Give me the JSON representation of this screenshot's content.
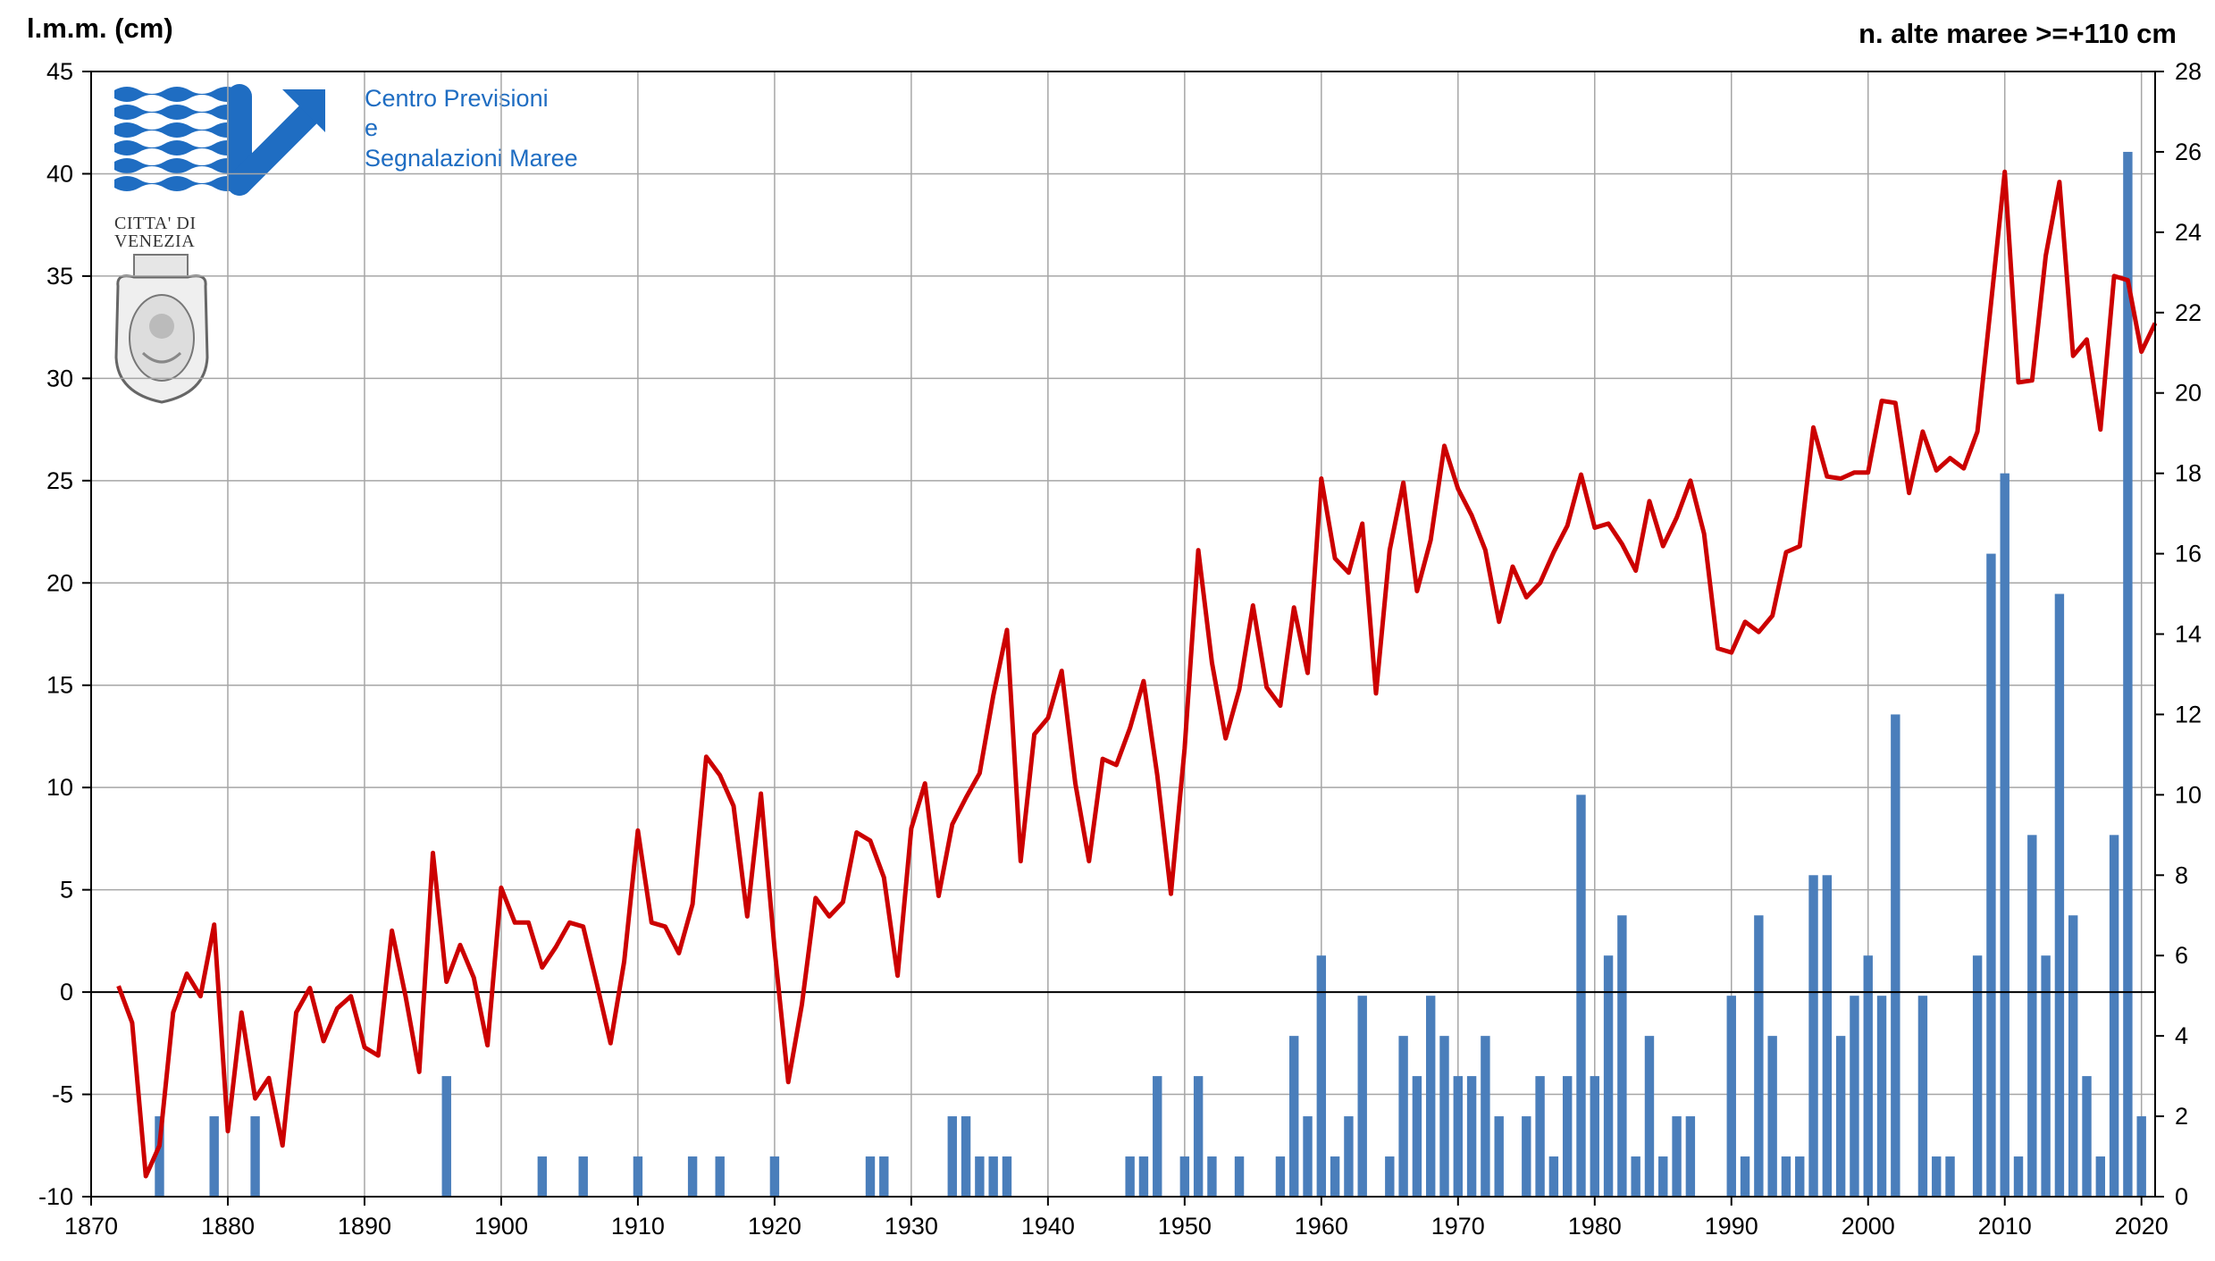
{
  "logo": {
    "org_line1": "Centro Previsioni",
    "org_line2": "e",
    "org_line3": "Segnalazioni Maree",
    "city_line1": "CITTA' DI",
    "city_line2": "VENEZIA",
    "brand_color": "#1f6dc2",
    "icon": "wave-lines-icon, arrow-up-right-icon, coat-of-arms-icon"
  },
  "chart_data": {
    "type": "bar+line",
    "ylabel_left": "l.m.m. (cm)",
    "ylabel_right": "n. alte maree >=+110 cm",
    "xlim": [
      1870,
      2021
    ],
    "ylim_left": [
      -10,
      45
    ],
    "ylim_right": [
      0,
      28
    ],
    "x_ticks": [
      1870,
      1880,
      1890,
      1900,
      1910,
      1920,
      1930,
      1940,
      1950,
      1960,
      1970,
      1980,
      1990,
      2000,
      2010,
      2020
    ],
    "y_ticks_left": [
      -10,
      -5,
      0,
      5,
      10,
      15,
      20,
      25,
      30,
      35,
      40,
      45
    ],
    "y_ticks_right": [
      0,
      2,
      4,
      6,
      8,
      10,
      12,
      14,
      16,
      18,
      20,
      22,
      24,
      26,
      28
    ],
    "grid": true,
    "line_color": "#cc0000",
    "bar_color": "#4a7ebb",
    "line_series": {
      "x": [
        1872,
        1873,
        1874,
        1875,
        1876,
        1877,
        1878,
        1879,
        1880,
        1881,
        1882,
        1883,
        1884,
        1885,
        1886,
        1887,
        1888,
        1889,
        1890,
        1891,
        1892,
        1893,
        1894,
        1895,
        1896,
        1897,
        1898,
        1899,
        1900,
        1901,
        1902,
        1903,
        1904,
        1905,
        1906,
        1907,
        1908,
        1909,
        1910,
        1911,
        1912,
        1913,
        1914,
        1915,
        1916,
        1917,
        1918,
        1919,
        1920,
        1921,
        1922,
        1923,
        1924,
        1925,
        1926,
        1927,
        1928,
        1929,
        1930,
        1931,
        1932,
        1933,
        1934,
        1935,
        1936,
        1937,
        1938,
        1939,
        1940,
        1941,
        1942,
        1943,
        1944,
        1945,
        1946,
        1947,
        1948,
        1949,
        1950,
        1951,
        1952,
        1953,
        1954,
        1955,
        1956,
        1957,
        1958,
        1959,
        1960,
        1961,
        1962,
        1963,
        1964,
        1965,
        1966,
        1967,
        1968,
        1969,
        1970,
        1971,
        1972,
        1973,
        1974,
        1975,
        1976,
        1977,
        1978,
        1979,
        1980,
        1981,
        1982,
        1983,
        1984,
        1985,
        1986,
        1987,
        1988,
        1989,
        1990,
        1991,
        1992,
        1993,
        1994,
        1995,
        1996,
        1997,
        1998,
        1999,
        2000,
        2001,
        2002,
        2003,
        2004,
        2005,
        2006,
        2007,
        2008,
        2009,
        2010,
        2011,
        2012,
        2013,
        2014,
        2015,
        2016,
        2017,
        2018,
        2019,
        2020,
        2021
      ],
      "y": [
        0.3,
        -1.5,
        -9,
        -7.5,
        -1,
        0.9,
        -0.2,
        3.3,
        -6.8,
        -1,
        -5.2,
        -4.2,
        -7.5,
        -1,
        0.2,
        -2.4,
        -0.8,
        -0.2,
        -2.7,
        -3.1,
        3,
        -0.2,
        -3.9,
        6.8,
        0.5,
        2.3,
        0.7,
        -2.6,
        5.1,
        3.4,
        3.4,
        1.2,
        2.2,
        3.4,
        3.2,
        0.4,
        -2.5,
        1.5,
        7.9,
        3.4,
        3.2,
        1.9,
        4.3,
        11.5,
        10.6,
        9.1,
        3.7,
        9.7,
        2.1,
        -4.4,
        -0.6,
        4.6,
        3.7,
        4.4,
        7.8,
        7.4,
        5.6,
        0.8,
        8,
        10.2,
        4.7,
        8.2,
        9.5,
        10.7,
        14.5,
        17.7,
        6.4,
        12.6,
        13.4,
        15.7,
        10.2,
        6.4,
        11.4,
        11.1,
        12.9,
        15.2,
        10.6,
        4.8,
        11.9,
        21.6,
        16.1,
        12.4,
        14.8,
        18.9,
        14.9,
        14,
        18.8,
        15.6,
        25.1,
        21.2,
        20.5,
        22.9,
        14.6,
        21.6,
        24.9,
        19.6,
        22.1,
        26.7,
        24.6,
        23.3,
        21.6,
        18.1,
        20.8,
        19.3,
        20,
        21.5,
        22.8,
        25.3,
        22.7,
        22.9,
        21.9,
        20.6,
        24,
        21.8,
        23.2,
        25,
        22.4,
        16.8,
        16.6,
        18.1,
        17.6,
        18.4,
        21.5,
        21.8,
        27.6,
        25.2,
        25.1,
        25.4,
        25.4,
        28.9,
        28.8,
        24.4,
        27.4,
        25.5,
        26.1,
        25.6,
        27.4,
        33.7,
        40.1,
        29.8,
        29.9,
        36,
        39.6,
        31.1,
        31.9,
        27.5,
        35,
        34.8,
        31.3,
        32.7
      ]
    },
    "bar_series": {
      "x": [
        1875,
        1879,
        1882,
        1896,
        1903,
        1906,
        1910,
        1914,
        1916,
        1920,
        1927,
        1928,
        1933,
        1934,
        1935,
        1936,
        1937,
        1946,
        1947,
        1948,
        1950,
        1951,
        1952,
        1954,
        1957,
        1958,
        1959,
        1960,
        1961,
        1962,
        1963,
        1965,
        1966,
        1967,
        1968,
        1969,
        1970,
        1971,
        1972,
        1973,
        1975,
        1976,
        1977,
        1978,
        1979,
        1980,
        1981,
        1982,
        1983,
        1984,
        1985,
        1986,
        1987,
        1990,
        1991,
        1992,
        1993,
        1994,
        1995,
        1996,
        1997,
        1998,
        1999,
        2000,
        2001,
        2002,
        2004,
        2005,
        2006,
        2008,
        2009,
        2010,
        2011,
        2012,
        2013,
        2014,
        2015,
        2016,
        2017,
        2018,
        2019,
        2020
      ],
      "values": [
        2,
        2,
        2,
        3,
        1,
        1,
        1,
        1,
        1,
        1,
        1,
        1,
        2,
        2,
        1,
        1,
        1,
        1,
        1,
        3,
        1,
        3,
        1,
        1,
        1,
        4,
        2,
        6,
        1,
        2,
        5,
        1,
        4,
        3,
        5,
        4,
        3,
        3,
        4,
        2,
        2,
        3,
        1,
        3,
        10,
        3,
        6,
        7,
        1,
        4,
        1,
        2,
        2,
        5,
        1,
        7,
        4,
        1,
        1,
        8,
        8,
        4,
        5,
        6,
        5,
        12,
        5,
        1,
        1,
        6,
        16,
        18,
        1,
        9,
        6,
        15,
        7,
        3,
        1,
        9,
        26,
        2
      ]
    }
  }
}
